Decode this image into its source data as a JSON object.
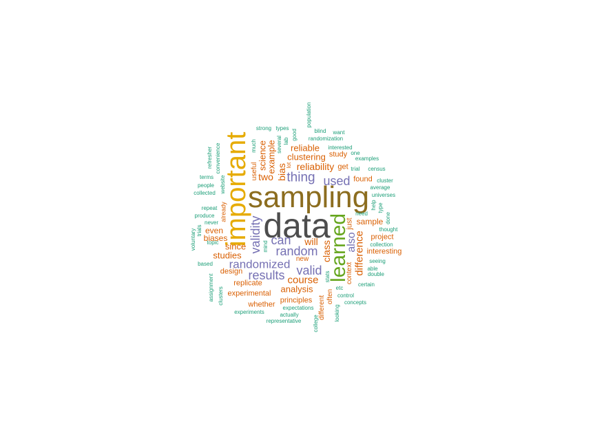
{
  "colors": {
    "gray": "#4d4d4d",
    "brown": "#8c6d1f",
    "gold": "#e6ab02",
    "green": "#66a61e",
    "purple": "#7570b3",
    "orange": "#d95f02",
    "teal": "#1b9e77"
  },
  "words": [
    {
      "text": "data",
      "color": "gray",
      "weight": 1.0,
      "rotated": false
    },
    {
      "text": "sampling",
      "color": "brown",
      "weight": 0.9,
      "rotated": false
    },
    {
      "text": "important",
      "color": "gold",
      "weight": 0.78,
      "rotated": true
    },
    {
      "text": "learned",
      "color": "green",
      "weight": 0.6,
      "rotated": true
    },
    {
      "text": "thing",
      "color": "purple",
      "weight": 0.38,
      "rotated": false
    },
    {
      "text": "used",
      "color": "purple",
      "weight": 0.36,
      "rotated": false
    },
    {
      "text": "can",
      "color": "purple",
      "weight": 0.38,
      "rotated": false
    },
    {
      "text": "random",
      "color": "purple",
      "weight": 0.38,
      "rotated": false
    },
    {
      "text": "validity",
      "color": "purple",
      "weight": 0.38,
      "rotated": true
    },
    {
      "text": "randomized",
      "color": "purple",
      "weight": 0.34,
      "rotated": false
    },
    {
      "text": "results",
      "color": "purple",
      "weight": 0.36,
      "rotated": false
    },
    {
      "text": "valid",
      "color": "purple",
      "weight": 0.36,
      "rotated": false
    },
    {
      "text": "also",
      "color": "purple",
      "weight": 0.33,
      "rotated": true
    },
    {
      "text": "difference",
      "color": "orange",
      "weight": 0.3,
      "rotated": true
    },
    {
      "text": "reliability",
      "color": "orange",
      "weight": 0.27,
      "rotated": false
    },
    {
      "text": "clustering",
      "color": "orange",
      "weight": 0.26,
      "rotated": false
    },
    {
      "text": "reliable",
      "color": "orange",
      "weight": 0.25,
      "rotated": false
    },
    {
      "text": "two",
      "color": "orange",
      "weight": 0.27,
      "rotated": false
    },
    {
      "text": "bias",
      "color": "orange",
      "weight": 0.28,
      "rotated": true
    },
    {
      "text": "example",
      "color": "orange",
      "weight": 0.26,
      "rotated": true
    },
    {
      "text": "science",
      "color": "orange",
      "weight": 0.25,
      "rotated": true
    },
    {
      "text": "will",
      "color": "orange",
      "weight": 0.27,
      "rotated": false
    },
    {
      "text": "class",
      "color": "orange",
      "weight": 0.27,
      "rotated": true
    },
    {
      "text": "course",
      "color": "orange",
      "weight": 0.29,
      "rotated": false
    },
    {
      "text": "analysis",
      "color": "orange",
      "weight": 0.25,
      "rotated": false
    },
    {
      "text": "since",
      "color": "orange",
      "weight": 0.25,
      "rotated": false
    },
    {
      "text": "studies",
      "color": "orange",
      "weight": 0.25,
      "rotated": false
    },
    {
      "text": "even",
      "color": "orange",
      "weight": 0.24,
      "rotated": false
    },
    {
      "text": "biases",
      "color": "orange",
      "weight": 0.23,
      "rotated": false
    },
    {
      "text": "sample",
      "color": "orange",
      "weight": 0.24,
      "rotated": false
    },
    {
      "text": "study",
      "color": "orange",
      "weight": 0.22,
      "rotated": false
    },
    {
      "text": "get",
      "color": "orange",
      "weight": 0.22,
      "rotated": false
    },
    {
      "text": "found",
      "color": "orange",
      "weight": 0.21,
      "rotated": false
    },
    {
      "text": "just",
      "color": "orange",
      "weight": 0.21,
      "rotated": true
    },
    {
      "text": "project",
      "color": "orange",
      "weight": 0.21,
      "rotated": false
    },
    {
      "text": "interesting",
      "color": "orange",
      "weight": 0.2,
      "rotated": false
    },
    {
      "text": "context",
      "color": "orange",
      "weight": 0.19,
      "rotated": true
    },
    {
      "text": "experimental",
      "color": "orange",
      "weight": 0.2,
      "rotated": false
    },
    {
      "text": "replicate",
      "color": "orange",
      "weight": 0.2,
      "rotated": false
    },
    {
      "text": "design",
      "color": "orange",
      "weight": 0.2,
      "rotated": false
    },
    {
      "text": "whether",
      "color": "orange",
      "weight": 0.2,
      "rotated": false
    },
    {
      "text": "principles",
      "color": "orange",
      "weight": 0.2,
      "rotated": false
    },
    {
      "text": "different",
      "color": "orange",
      "weight": 0.19,
      "rotated": true
    },
    {
      "text": "often",
      "color": "orange",
      "weight": 0.18,
      "rotated": true
    },
    {
      "text": "useful",
      "color": "orange",
      "weight": 0.18,
      "rotated": true
    },
    {
      "text": "new",
      "color": "orange",
      "weight": 0.17,
      "rotated": false
    },
    {
      "text": "already",
      "color": "orange",
      "weight": 0.16,
      "rotated": true
    },
    {
      "text": "lot",
      "color": "orange",
      "weight": 0.14,
      "rotated": true
    },
    {
      "text": "strong",
      "color": "teal",
      "weight": 0.13,
      "rotated": false
    },
    {
      "text": "types",
      "color": "teal",
      "weight": 0.13,
      "rotated": false
    },
    {
      "text": "good",
      "color": "teal",
      "weight": 0.13,
      "rotated": true
    },
    {
      "text": "population",
      "color": "teal",
      "weight": 0.13,
      "rotated": true
    },
    {
      "text": "blind",
      "color": "teal",
      "weight": 0.13,
      "rotated": false
    },
    {
      "text": "want",
      "color": "teal",
      "weight": 0.13,
      "rotated": false
    },
    {
      "text": "much",
      "color": "teal",
      "weight": 0.13,
      "rotated": true
    },
    {
      "text": "lab",
      "color": "teal",
      "weight": 0.13,
      "rotated": true
    },
    {
      "text": "several",
      "color": "teal",
      "weight": 0.13,
      "rotated": true
    },
    {
      "text": "randomization",
      "color": "teal",
      "weight": 0.13,
      "rotated": false
    },
    {
      "text": "interested",
      "color": "teal",
      "weight": 0.13,
      "rotated": false
    },
    {
      "text": "one",
      "color": "teal",
      "weight": 0.13,
      "rotated": false
    },
    {
      "text": "examples",
      "color": "teal",
      "weight": 0.13,
      "rotated": false
    },
    {
      "text": "trial",
      "color": "teal",
      "weight": 0.13,
      "rotated": false
    },
    {
      "text": "census",
      "color": "teal",
      "weight": 0.13,
      "rotated": false
    },
    {
      "text": "cluster",
      "color": "teal",
      "weight": 0.13,
      "rotated": false
    },
    {
      "text": "average",
      "color": "teal",
      "weight": 0.13,
      "rotated": false
    },
    {
      "text": "universes",
      "color": "teal",
      "weight": 0.13,
      "rotated": false
    },
    {
      "text": "help",
      "color": "teal",
      "weight": 0.13,
      "rotated": true
    },
    {
      "text": "type",
      "color": "teal",
      "weight": 0.13,
      "rotated": true
    },
    {
      "text": "done",
      "color": "teal",
      "weight": 0.13,
      "rotated": true
    },
    {
      "text": "need",
      "color": "teal",
      "weight": 0.13,
      "rotated": false
    },
    {
      "text": "thought",
      "color": "teal",
      "weight": 0.13,
      "rotated": false
    },
    {
      "text": "collection",
      "color": "teal",
      "weight": 0.13,
      "rotated": false
    },
    {
      "text": "seeing",
      "color": "teal",
      "weight": 0.13,
      "rotated": false
    },
    {
      "text": "able",
      "color": "teal",
      "weight": 0.13,
      "rotated": false
    },
    {
      "text": "double",
      "color": "teal",
      "weight": 0.13,
      "rotated": false
    },
    {
      "text": "certain",
      "color": "teal",
      "weight": 0.13,
      "rotated": false
    },
    {
      "text": "control",
      "color": "teal",
      "weight": 0.13,
      "rotated": false
    },
    {
      "text": "concepts",
      "color": "teal",
      "weight": 0.13,
      "rotated": false
    },
    {
      "text": "etc",
      "color": "teal",
      "weight": 0.13,
      "rotated": false
    },
    {
      "text": "looking",
      "color": "teal",
      "weight": 0.13,
      "rotated": true
    },
    {
      "text": "stats",
      "color": "teal",
      "weight": 0.13,
      "rotated": true
    },
    {
      "text": "college",
      "color": "teal",
      "weight": 0.13,
      "rotated": true
    },
    {
      "text": "expectations",
      "color": "teal",
      "weight": 0.13,
      "rotated": false
    },
    {
      "text": "actually",
      "color": "teal",
      "weight": 0.13,
      "rotated": false
    },
    {
      "text": "representative",
      "color": "teal",
      "weight": 0.13,
      "rotated": false
    },
    {
      "text": "experiments",
      "color": "teal",
      "weight": 0.13,
      "rotated": false
    },
    {
      "text": "clusters",
      "color": "teal",
      "weight": 0.13,
      "rotated": true
    },
    {
      "text": "assignment",
      "color": "teal",
      "weight": 0.13,
      "rotated": true
    },
    {
      "text": "based",
      "color": "teal",
      "weight": 0.13,
      "rotated": false
    },
    {
      "text": "topic",
      "color": "teal",
      "weight": 0.13,
      "rotated": false
    },
    {
      "text": "voluntary",
      "color": "teal",
      "weight": 0.13,
      "rotated": true
    },
    {
      "text": "trials",
      "color": "teal",
      "weight": 0.13,
      "rotated": true
    },
    {
      "text": "never",
      "color": "teal",
      "weight": 0.13,
      "rotated": false
    },
    {
      "text": "produce",
      "color": "teal",
      "weight": 0.13,
      "rotated": false
    },
    {
      "text": "repeat",
      "color": "teal",
      "weight": 0.13,
      "rotated": false
    },
    {
      "text": "collected",
      "color": "teal",
      "weight": 0.13,
      "rotated": false
    },
    {
      "text": "people",
      "color": "teal",
      "weight": 0.13,
      "rotated": false
    },
    {
      "text": "terms",
      "color": "teal",
      "weight": 0.13,
      "rotated": false
    },
    {
      "text": "website",
      "color": "teal",
      "weight": 0.13,
      "rotated": true
    },
    {
      "text": "convenience",
      "color": "teal",
      "weight": 0.13,
      "rotated": true
    },
    {
      "text": "refresher",
      "color": "teal",
      "weight": 0.13,
      "rotated": true
    },
    {
      "text": "mind",
      "color": "teal",
      "weight": 0.13,
      "rotated": true
    }
  ]
}
